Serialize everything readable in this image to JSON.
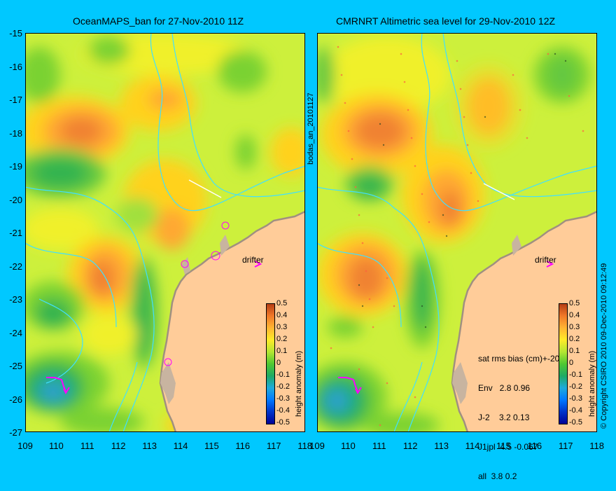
{
  "left_panel": {
    "title": "OceanMAPS_ban for 27-Nov-2010 11Z",
    "side_label": "bodas_an_20101127",
    "drifter_label": "drifter"
  },
  "right_panel": {
    "title": "CMRNRT Altimetric sea level  for 29-Nov-2010 12Z",
    "drifter_label": "drifter",
    "stats": {
      "header": "sat rms bias (cm)+-20",
      "rows": [
        "Env   2.8 0.96",
        "J-2    3.2 0.13",
        "J1jpl  4.5 -0.067",
        "all  3.8 0.2"
      ]
    }
  },
  "colorbar": {
    "label": "height anomaly (m)",
    "ticks": [
      "0.5",
      "0.4",
      "0.3",
      "0.2",
      "0.1",
      "0",
      "-0.1",
      "-0.2",
      "-0.3",
      "-0.4",
      "-0.5"
    ]
  },
  "axes": {
    "y_ticks": [
      "-15",
      "-16",
      "-17",
      "-18",
      "-19",
      "-20",
      "-21",
      "-22",
      "-23",
      "-24",
      "-25",
      "-26",
      "-27"
    ],
    "x_ticks_left": [
      "109",
      "110",
      "111",
      "112",
      "113",
      "114",
      "115",
      "116",
      "117",
      "118"
    ],
    "x_ticks_right": [
      "109",
      "110",
      "111",
      "112",
      "113",
      "114",
      "115",
      "116",
      "117",
      "118"
    ],
    "lon_range": [
      109,
      118
    ],
    "lat_range": [
      -27,
      -15
    ]
  },
  "copyright": "© Copyright CSIRO 2010   09-Dec-2010 09:12:49",
  "colors": {
    "background": "#00c8ff",
    "land": "#ffcc99",
    "coast_shelf": "#c8b4a0",
    "drifter": "#ff00ff",
    "isobath": "#40e0ff"
  }
}
